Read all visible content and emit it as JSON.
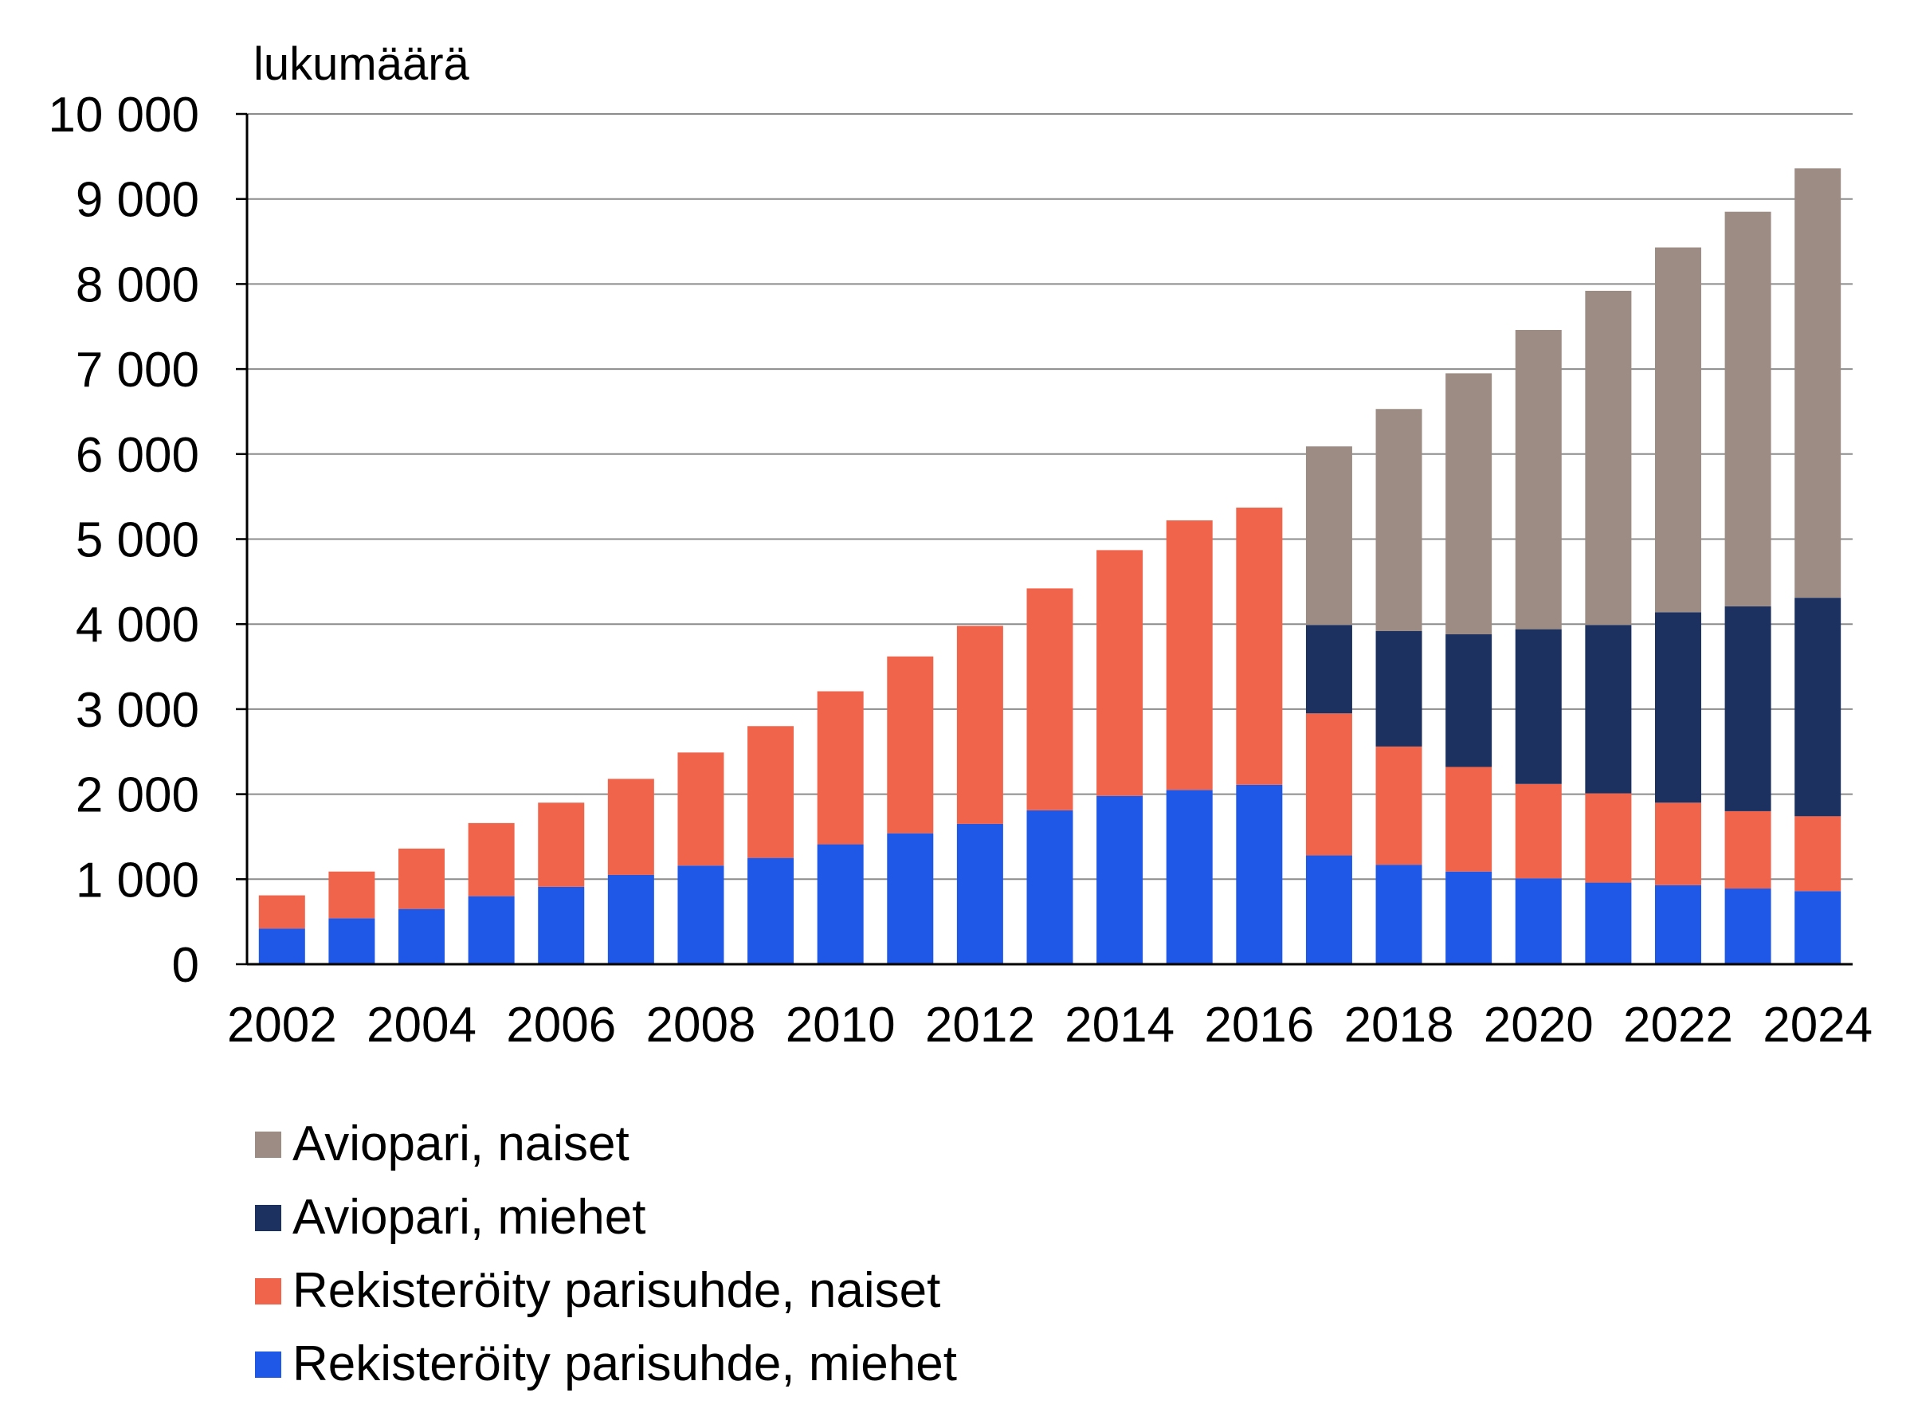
{
  "chart_data": {
    "type": "bar",
    "stacked": true,
    "ylabel": "lukumäärä",
    "ylim": [
      0,
      10000
    ],
    "yticks": [
      0,
      1000,
      2000,
      3000,
      4000,
      5000,
      6000,
      7000,
      8000,
      9000,
      10000
    ],
    "ytick_labels": [
      "0",
      "1 000",
      "2 000",
      "3 000",
      "4 000",
      "5 000",
      "6 000",
      "7 000",
      "8 000",
      "9 000",
      "10 000"
    ],
    "grid": true,
    "legend_position": "bottom",
    "categories": [
      2002,
      2003,
      2004,
      2005,
      2006,
      2007,
      2008,
      2009,
      2010,
      2011,
      2012,
      2013,
      2014,
      2015,
      2016,
      2017,
      2018,
      2019,
      2020,
      2021,
      2022,
      2023,
      2024
    ],
    "xtick_labels": [
      "2002",
      "2004",
      "2006",
      "2008",
      "2010",
      "2012",
      "2014",
      "2016",
      "2018",
      "2020",
      "2022",
      "2024"
    ],
    "series": [
      {
        "name": "Rekisteröity parisuhde, miehet",
        "color": "#1f57e7",
        "values": [
          420,
          540,
          650,
          800,
          910,
          1050,
          1160,
          1250,
          1410,
          1540,
          1650,
          1810,
          1980,
          2050,
          2110,
          1280,
          1170,
          1090,
          1010,
          960,
          930,
          890,
          860
        ]
      },
      {
        "name": "Rekisteröity parisuhde, naiset",
        "color": "#f0644c",
        "values": [
          390,
          550,
          710,
          860,
          990,
          1130,
          1330,
          1550,
          1800,
          2080,
          2330,
          2610,
          2890,
          3170,
          3260,
          1670,
          1390,
          1230,
          1110,
          1050,
          970,
          910,
          880
        ]
      },
      {
        "name": "Aviopari, miehet",
        "color": "#1c3160",
        "values": [
          0,
          0,
          0,
          0,
          0,
          0,
          0,
          0,
          0,
          0,
          0,
          0,
          0,
          0,
          0,
          1040,
          1360,
          1560,
          1820,
          1980,
          2240,
          2410,
          2570
        ]
      },
      {
        "name": "Aviopari, naiset",
        "color": "#9c8c84",
        "values": [
          0,
          0,
          0,
          0,
          0,
          0,
          0,
          0,
          0,
          0,
          0,
          0,
          0,
          0,
          0,
          2100,
          2610,
          3070,
          3520,
          3930,
          4290,
          4640,
          5050
        ]
      }
    ],
    "legend_order": [
      "Aviopari, naiset",
      "Aviopari, miehet",
      "Rekisteröity parisuhde, naiset",
      "Rekisteröity parisuhde, miehet"
    ]
  },
  "legend": {
    "items": [
      {
        "label": "Aviopari, naiset",
        "color": "#9c8c84"
      },
      {
        "label": "Aviopari, miehet",
        "color": "#1c3160"
      },
      {
        "label": "Rekisteröity parisuhde, naiset",
        "color": "#f0644c"
      },
      {
        "label": "Rekisteröity parisuhde, miehet",
        "color": "#1f57e7"
      }
    ]
  }
}
